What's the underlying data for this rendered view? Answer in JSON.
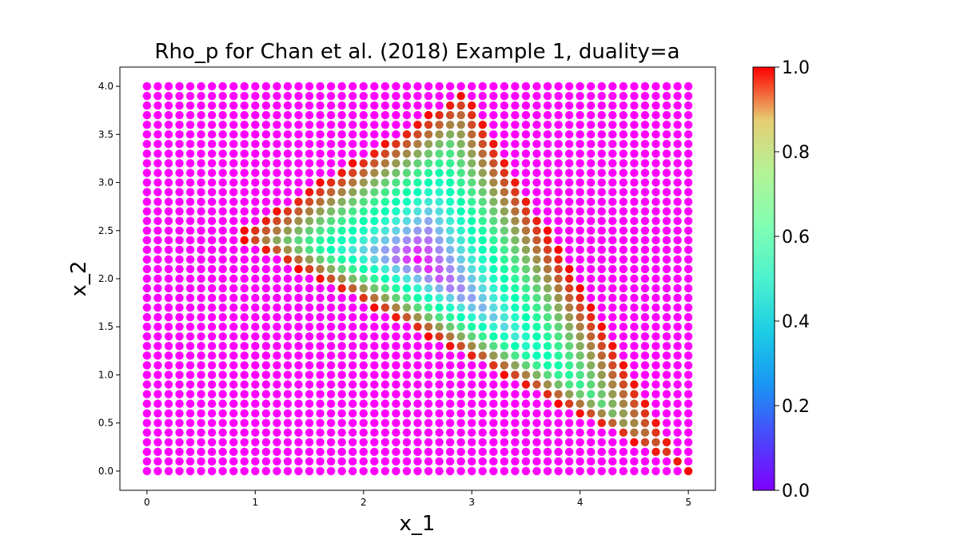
{
  "chart_data": {
    "type": "scatter",
    "title": "Rho_p for Chan et al. (2018) Example 1, duality=a",
    "xlabel": "x_1",
    "ylabel": "x_2",
    "xlim": [
      -0.25,
      5.25
    ],
    "ylim": [
      -0.2,
      4.2
    ],
    "x_ticks": [
      "0",
      "1",
      "2",
      "3",
      "4",
      "5"
    ],
    "y_ticks": [
      "0.0",
      "0.5",
      "1.0",
      "1.5",
      "2.0",
      "2.5",
      "3.0",
      "3.5",
      "4.0"
    ],
    "grid": false,
    "legend": false,
    "colormap": "rainbow",
    "colorbar": {
      "min": 0.0,
      "max": 1.0,
      "ticks": [
        "0.0",
        "0.2",
        "0.4",
        "0.6",
        "0.8",
        "1.0"
      ]
    },
    "grid_sampling": {
      "x_start": 0.0,
      "x_end": 5.0,
      "x_points": 51,
      "y_start": 0.0,
      "y_end": 4.0,
      "y_points": 41
    },
    "feasible_region_vertices": [
      [
        0.8,
        2.45
      ],
      [
        2.95,
        3.95
      ],
      [
        5.0,
        0.0
      ]
    ],
    "interior_minimum_point": [
      2.5,
      2.2
    ],
    "value_outside_region": 0.0,
    "value_on_region_boundary": 1.0,
    "value_at_interior_minimum": 0.0
  },
  "colors": {
    "background": "#ffffff",
    "axes_edge": "#000000"
  }
}
